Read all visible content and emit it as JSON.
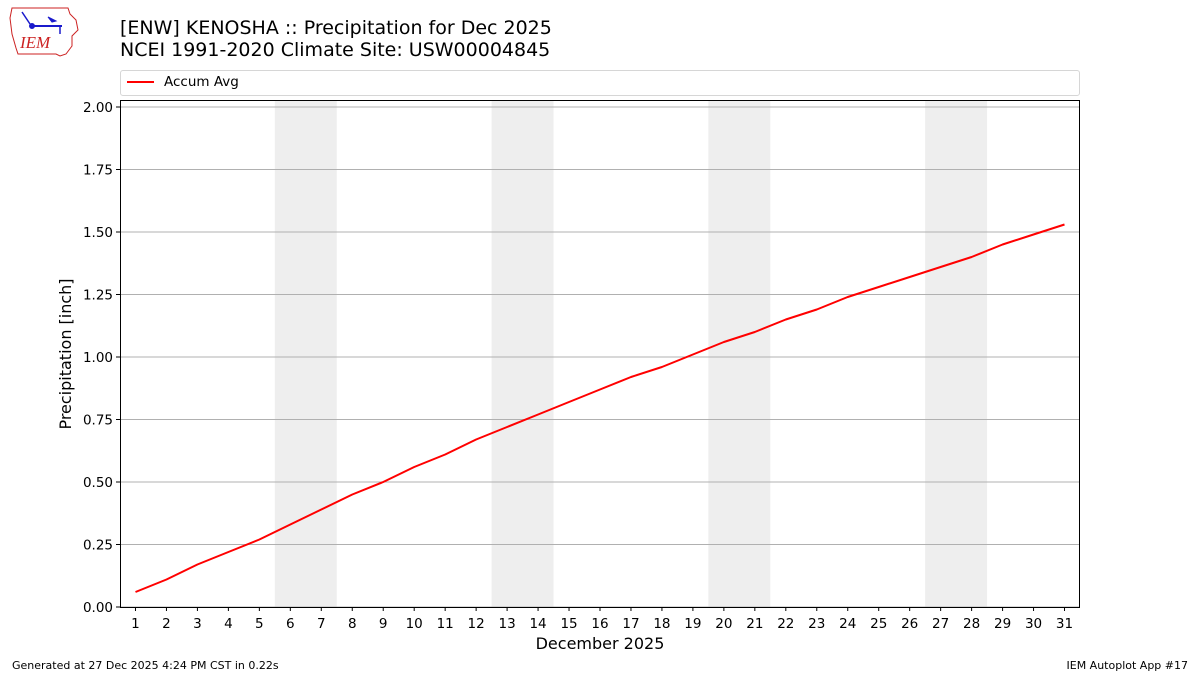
{
  "header": {
    "logo_text": "IEM",
    "title_line1": "[ENW] KENOSHA :: Precipitation for Dec 2025",
    "title_line2": "NCEI 1991-2020 Climate Site: USW00004845"
  },
  "legend": {
    "items": [
      {
        "label": "Accum Avg",
        "color": "#ff0000"
      }
    ]
  },
  "footer": {
    "generated": "Generated at 27 Dec 2025 4:24 PM CST in 0.22s",
    "app": "IEM Autoplot App #17"
  },
  "colors": {
    "line": "#ff0000",
    "weekend_band": "#eeeeee",
    "grid": "#b0b0b0",
    "logo_red": "#cc2222",
    "logo_blue": "#1a1acc"
  },
  "chart_data": {
    "type": "line",
    "title": "[ENW] KENOSHA :: Precipitation for Dec 2025",
    "subtitle": "NCEI 1991-2020 Climate Site: USW00004845",
    "xlabel": "December 2025",
    "ylabel": "Precipitation [inch]",
    "x": [
      1,
      2,
      3,
      4,
      5,
      6,
      7,
      8,
      9,
      10,
      11,
      12,
      13,
      14,
      15,
      16,
      17,
      18,
      19,
      20,
      21,
      22,
      23,
      24,
      25,
      26,
      27,
      28,
      29,
      30,
      31
    ],
    "series": [
      {
        "name": "Accum Avg",
        "color": "#ff0000",
        "values": [
          0.06,
          0.11,
          0.17,
          0.22,
          0.27,
          0.33,
          0.39,
          0.45,
          0.5,
          0.56,
          0.61,
          0.67,
          0.72,
          0.77,
          0.82,
          0.87,
          0.92,
          0.96,
          1.01,
          1.06,
          1.1,
          1.15,
          1.19,
          1.24,
          1.28,
          1.32,
          1.36,
          1.4,
          1.45,
          1.49,
          1.53
        ]
      }
    ],
    "xlim": [
      0.5,
      31.5
    ],
    "ylim": [
      0,
      2.03
    ],
    "yticks": [
      "0.00",
      "0.25",
      "0.50",
      "0.75",
      "1.00",
      "1.25",
      "1.50",
      "1.75",
      "2.00"
    ],
    "xticks": [
      "1",
      "2",
      "3",
      "4",
      "5",
      "6",
      "7",
      "8",
      "9",
      "10",
      "11",
      "12",
      "13",
      "14",
      "15",
      "16",
      "17",
      "18",
      "19",
      "20",
      "21",
      "22",
      "23",
      "24",
      "25",
      "26",
      "27",
      "28",
      "29",
      "30",
      "31"
    ],
    "weekend_shading": [
      [
        6,
        7
      ],
      [
        13,
        14
      ],
      [
        20,
        21
      ],
      [
        27,
        28
      ]
    ],
    "grid": {
      "y": true,
      "x": false
    },
    "legend_position": "top"
  }
}
